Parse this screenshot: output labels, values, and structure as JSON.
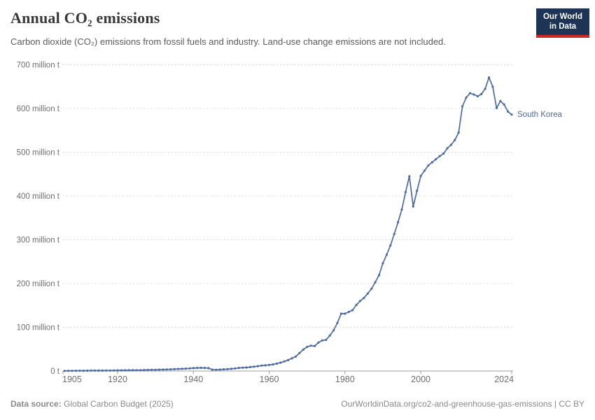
{
  "header": {
    "title": "Annual CO₂ emissions",
    "subtitle": "Carbon dioxide (CO₂) emissions from fossil fuels and industry. Land-use change emissions are not included."
  },
  "logo": {
    "line1": "Our World",
    "line2": "in Data"
  },
  "colors": {
    "line": "#4c6ba5",
    "grid": "#dcdcdc",
    "axis": "#9c9c9c",
    "tick_text": "#6e6e6e",
    "logo_navy": "#1d3456",
    "logo_red": "#cf2a24"
  },
  "chart_data": {
    "type": "line",
    "title": "Annual CO₂ emissions",
    "entity": "South Korea",
    "unit": "million t",
    "ylim": [
      0,
      700
    ],
    "grid": "dashed-horizontal",
    "yticks": [
      {
        "v": 0,
        "label": "0 t"
      },
      {
        "v": 100,
        "label": "100 million t"
      },
      {
        "v": 200,
        "label": "200 million t"
      },
      {
        "v": 300,
        "label": "300 million t"
      },
      {
        "v": 400,
        "label": "400 million t"
      },
      {
        "v": 500,
        "label": "500 million t"
      },
      {
        "v": 600,
        "label": "600 million t"
      },
      {
        "v": 700,
        "label": "700 million t"
      }
    ],
    "xticks": [
      1905,
      1920,
      1940,
      1960,
      1980,
      2000,
      2024
    ],
    "years": [
      1906,
      1907,
      1908,
      1909,
      1910,
      1911,
      1912,
      1913,
      1914,
      1915,
      1916,
      1917,
      1918,
      1919,
      1920,
      1921,
      1922,
      1923,
      1924,
      1925,
      1926,
      1927,
      1928,
      1929,
      1930,
      1931,
      1932,
      1933,
      1934,
      1935,
      1936,
      1937,
      1938,
      1939,
      1940,
      1941,
      1942,
      1943,
      1944,
      1945,
      1946,
      1947,
      1948,
      1949,
      1950,
      1951,
      1952,
      1953,
      1954,
      1955,
      1956,
      1957,
      1958,
      1959,
      1960,
      1961,
      1962,
      1963,
      1964,
      1965,
      1966,
      1967,
      1968,
      1969,
      1970,
      1971,
      1972,
      1973,
      1974,
      1975,
      1976,
      1977,
      1978,
      1979,
      1980,
      1981,
      1982,
      1983,
      1984,
      1985,
      1986,
      1987,
      1988,
      1989,
      1990,
      1991,
      1992,
      1993,
      1994,
      1995,
      1996,
      1997,
      1998,
      1999,
      2000,
      2001,
      2002,
      2003,
      2004,
      2005,
      2006,
      2007,
      2008,
      2009,
      2010,
      2011,
      2012,
      2013,
      2014,
      2015,
      2016,
      2017,
      2018,
      2019,
      2020,
      2021,
      2022,
      2023,
      2024
    ],
    "values": [
      0.4,
      0.5,
      0.5,
      0.6,
      0.6,
      0.7,
      0.8,
      0.9,
      0.9,
      1.0,
      1.0,
      1.1,
      1.2,
      1.3,
      1.4,
      1.5,
      1.6,
      1.7,
      1.8,
      1.9,
      2.0,
      2.2,
      2.4,
      2.6,
      2.8,
      3.0,
      3.2,
      3.5,
      3.8,
      4.2,
      4.6,
      5.0,
      5.5,
      6.0,
      6.5,
      7.0,
      7.2,
      7.0,
      6.5,
      3.0,
      2.8,
      3.2,
      3.8,
      4.2,
      5.0,
      6.0,
      7.0,
      7.5,
      8.0,
      9.0,
      10.0,
      11.0,
      12.5,
      13.0,
      14.0,
      15,
      17,
      19,
      22,
      25,
      29,
      33,
      41,
      49,
      55,
      58,
      57,
      65,
      70,
      71,
      81,
      93,
      110,
      131,
      131,
      135,
      139,
      151,
      160,
      167,
      177,
      188,
      203,
      219,
      246,
      266,
      287,
      313,
      340,
      369,
      409,
      445,
      376,
      412,
      446,
      458,
      470,
      477,
      484,
      491,
      497,
      509,
      517,
      528,
      545,
      605,
      625,
      635,
      632,
      628,
      633,
      645,
      671,
      650,
      601,
      617,
      609,
      593,
      586
    ]
  },
  "annotations": {
    "entity_label": "South Korea"
  },
  "footer": {
    "source_label": "Data source:",
    "source_value": " Global Carbon Budget (2025)",
    "credit": "OurWorldinData.org/co2-and-greenhouse-gas-emissions | CC BY"
  }
}
